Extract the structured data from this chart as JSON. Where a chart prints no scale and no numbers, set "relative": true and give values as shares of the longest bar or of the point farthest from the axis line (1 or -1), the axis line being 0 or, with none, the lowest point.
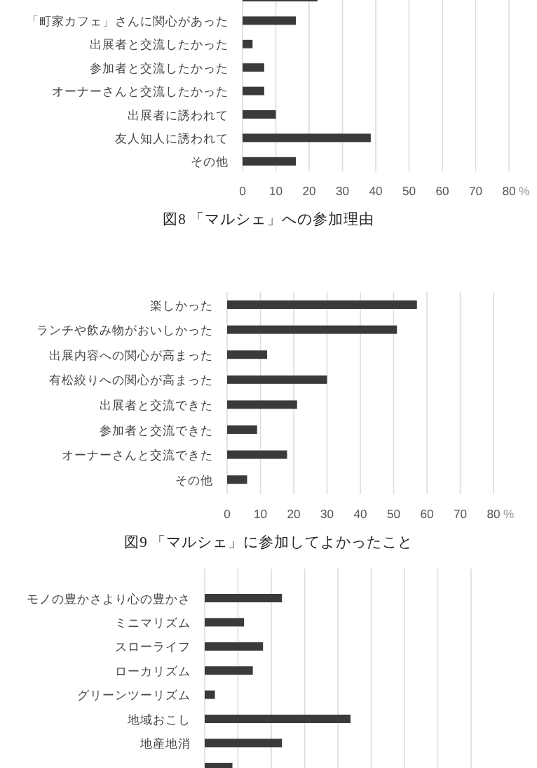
{
  "chart_data": [
    {
      "type": "bar",
      "orientation": "horizontal",
      "title": "図8 「マルシェ」への参加理由",
      "xlabel": "%",
      "categories": [
        null,
        "「町家カフェ」さんに関心があった",
        "出展者と交流したかった",
        "参加者と交流したかった",
        "オーナーさんと交流したかった",
        "出展者に誘われて",
        "友人知人に誘われて",
        "その他"
      ],
      "values": [
        22.5,
        16,
        3,
        6.5,
        6.5,
        10,
        38.5,
        16
      ],
      "color": "#3a3a3a",
      "xlim": [
        0,
        80
      ],
      "xticks": [
        0,
        10,
        20,
        30,
        40,
        50,
        60,
        70,
        80
      ],
      "grid": "x"
    },
    {
      "type": "bar",
      "orientation": "horizontal",
      "title": "図9 「マルシェ」に参加してよかったこと",
      "xlabel": "%",
      "categories": [
        "楽しかった",
        "ランチや飲み物がおいしかった",
        "出展内容への関心が高まった",
        "有松絞りへの関心が高まった",
        "出展者と交流できた",
        "参加者と交流できた",
        "オーナーさんと交流できた",
        "その他"
      ],
      "values": [
        57,
        51,
        12,
        30,
        21,
        9,
        18,
        6
      ],
      "color": "#3a3a3a",
      "xlim": [
        0,
        80
      ],
      "xticks": [
        0,
        10,
        20,
        30,
        40,
        50,
        60,
        70,
        80
      ],
      "grid": "x"
    },
    {
      "type": "bar",
      "orientation": "horizontal",
      "relative": true,
      "categories": [
        "モノの豊かさより心の豊かさ",
        "ミニマリズム",
        "スローライフ",
        "ローカリズム",
        "グリーンツーリズム",
        "地域おこし",
        "地産地消",
        null
      ],
      "values": [
        0.53,
        0.27,
        0.4,
        0.33,
        0.07,
        1,
        0.53,
        0.19
      ],
      "color": "#3a3a3a",
      "grid": "x"
    }
  ]
}
